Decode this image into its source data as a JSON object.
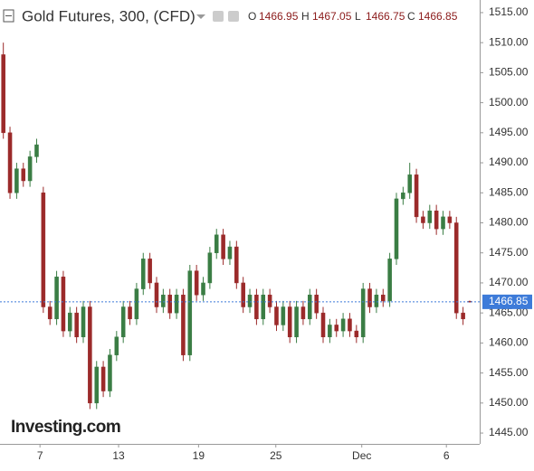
{
  "chart_data": {
    "type": "candlestick",
    "title": "Gold Futures, 300, (CFD)",
    "ohlc_header": [
      {
        "label": "O",
        "value": "1466.95"
      },
      {
        "label": "H",
        "value": "1467.05"
      },
      {
        "label": "L",
        "value": "1466.75"
      },
      {
        "label": "C",
        "value": "1466.85"
      }
    ],
    "watermark": "Investing.com",
    "xlim": [
      0,
      72
    ],
    "xticks": [
      {
        "value": 6.0,
        "label": "7"
      },
      {
        "value": 17.8,
        "label": "13"
      },
      {
        "value": 29.8,
        "label": "19"
      },
      {
        "value": 41.4,
        "label": "25"
      },
      {
        "value": 54.3,
        "label": "Dec"
      },
      {
        "value": 67.0,
        "label": "6"
      }
    ],
    "ylim": [
      1443.2,
      1517.1
    ],
    "yticks": [
      {
        "value": 1445,
        "label": "1445.00"
      },
      {
        "value": 1450,
        "label": "1450.00"
      },
      {
        "value": 1455,
        "label": "1455.00"
      },
      {
        "value": 1460,
        "label": "1460.00"
      },
      {
        "value": 1465,
        "label": "1465.00"
      },
      {
        "value": 1470,
        "label": "1470.00"
      },
      {
        "value": 1475,
        "label": "1475.00"
      },
      {
        "value": 1480,
        "label": "1480.00"
      },
      {
        "value": 1485,
        "label": "1485.00"
      },
      {
        "value": 1490,
        "label": "1490.00"
      },
      {
        "value": 1495,
        "label": "1495.00"
      },
      {
        "value": 1500,
        "label": "1500.00"
      },
      {
        "value": 1505,
        "label": "1505.00"
      },
      {
        "value": 1510,
        "label": "1510.00"
      },
      {
        "value": 1515,
        "label": "1515.00"
      }
    ],
    "up_color": "#3a7d44",
    "down_color": "#9b2a2a",
    "last_price_color": "#3d7bd9",
    "last_price": {
      "value": 1466.85,
      "label": "1466.85"
    },
    "open": [
      1508,
      1495,
      1485,
      1489,
      1487,
      1491,
      1485,
      1466,
      1464,
      1471,
      1462,
      1465,
      1461,
      1466,
      1450,
      1456,
      1452,
      1458,
      1461,
      1466,
      1464,
      1469,
      1474,
      1470,
      1466,
      1468,
      1465,
      1468,
      1458,
      1472,
      1468,
      1470,
      1475,
      1478,
      1474,
      1476,
      1470,
      1466,
      1468,
      1464,
      1468,
      1466,
      1463,
      1466,
      1461,
      1466,
      1464,
      1468,
      1465,
      1461,
      1463,
      1462,
      1464,
      1462,
      1461,
      1469,
      1466,
      1468,
      1467,
      1474,
      1484,
      1485,
      1488,
      1481,
      1480,
      1482,
      1479,
      1481,
      1480,
      1465,
      1466.95
    ],
    "high": [
      1510,
      1496,
      1490,
      1490,
      1492,
      1494,
      1486,
      1467,
      1472,
      1472,
      1466,
      1466,
      1467,
      1467,
      1457,
      1457,
      1459,
      1462,
      1467,
      1467,
      1470,
      1475,
      1475,
      1471,
      1469,
      1469,
      1469,
      1469,
      1473,
      1473,
      1471,
      1476,
      1479,
      1479,
      1477,
      1477,
      1471,
      1469,
      1469,
      1469,
      1469,
      1467,
      1467,
      1467,
      1467,
      1467,
      1469,
      1469,
      1466,
      1464,
      1464,
      1465,
      1465,
      1463,
      1470,
      1470,
      1469,
      1469,
      1475,
      1485,
      1486,
      1490,
      1489,
      1482,
      1483,
      1483,
      1482,
      1482,
      1481,
      1466,
      1467.05
    ],
    "low": [
      1494,
      1484,
      1484,
      1486,
      1486,
      1490,
      1465,
      1463,
      1463,
      1461,
      1461,
      1460,
      1460,
      1449,
      1449,
      1451,
      1451,
      1457,
      1460,
      1463,
      1463,
      1468,
      1469,
      1465,
      1465,
      1464,
      1464,
      1457,
      1457,
      1467,
      1467,
      1469,
      1474,
      1473,
      1473,
      1469,
      1465,
      1465,
      1463,
      1463,
      1465,
      1462,
      1462,
      1460,
      1460,
      1463,
      1463,
      1464,
      1460,
      1460,
      1461,
      1461,
      1461,
      1460,
      1460,
      1465,
      1465,
      1466,
      1466,
      1473,
      1483,
      1484,
      1480,
      1479,
      1479,
      1478,
      1478,
      1479,
      1464,
      1463,
      1466.75
    ],
    "close": [
      1495,
      1485,
      1489,
      1487,
      1491,
      1493,
      1466,
      1464,
      1471,
      1462,
      1465,
      1461,
      1466,
      1450,
      1456,
      1452,
      1458,
      1461,
      1466,
      1464,
      1469,
      1474,
      1470,
      1466,
      1468,
      1465,
      1468,
      1458,
      1472,
      1468,
      1470,
      1475,
      1478,
      1474,
      1476,
      1470,
      1466,
      1468,
      1464,
      1468,
      1466,
      1463,
      1466,
      1461,
      1466,
      1464,
      1468,
      1465,
      1461,
      1463,
      1462,
      1464,
      1462,
      1461,
      1469,
      1466,
      1468,
      1467,
      1474,
      1484,
      1485,
      1488,
      1481,
      1480,
      1482,
      1479,
      1481,
      1480,
      1465,
      1464,
      1466.85
    ]
  }
}
